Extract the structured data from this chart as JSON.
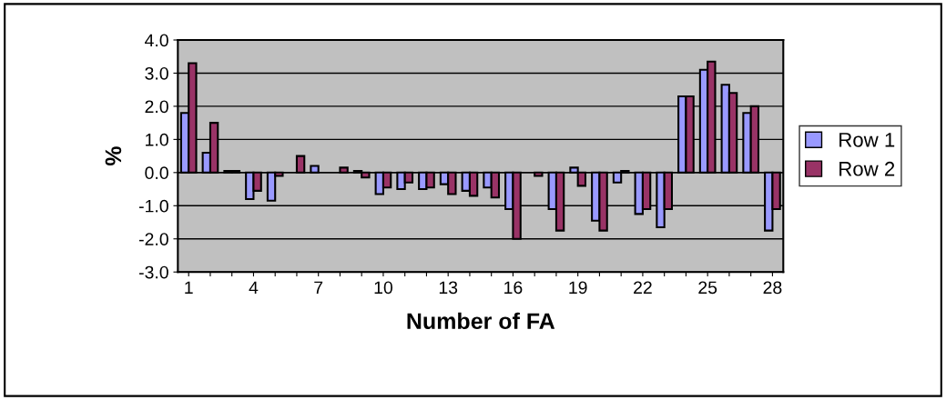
{
  "chart_data": {
    "type": "bar",
    "xlabel": "Number of FA",
    "ylabel": "%",
    "categories": [
      "1",
      null,
      null,
      "4",
      null,
      null,
      "7",
      null,
      null,
      "10",
      null,
      null,
      "13",
      null,
      null,
      "16",
      null,
      null,
      "19",
      null,
      null,
      "22",
      null,
      null,
      "25",
      null,
      null,
      "28"
    ],
    "series": [
      {
        "name": "Row 1",
        "color": "#9999ff",
        "values": [
          1.8,
          0.6,
          0.05,
          -0.8,
          -0.85,
          null,
          0.2,
          null,
          0.05,
          -0.65,
          -0.5,
          -0.5,
          -0.35,
          -0.55,
          -0.45,
          -1.1,
          null,
          -1.1,
          0.15,
          -1.45,
          -0.3,
          -1.25,
          -1.65,
          2.3,
          3.1,
          2.65,
          1.8,
          -1.75
        ]
      },
      {
        "name": "Row 2",
        "color": "#993366",
        "values": [
          3.3,
          1.5,
          0.05,
          -0.55,
          -0.1,
          0.5,
          null,
          0.15,
          -0.15,
          -0.45,
          -0.3,
          -0.45,
          -0.65,
          -0.7,
          -0.75,
          -2.0,
          -0.1,
          -1.75,
          -0.4,
          -1.75,
          0.05,
          -1.1,
          -1.1,
          2.3,
          3.35,
          2.4,
          2.0,
          -1.1
        ]
      }
    ],
    "ylim": [
      -3,
      4
    ],
    "yticks": [
      {
        "value": -3,
        "label": "-3.0"
      },
      {
        "value": -2,
        "label": "-2.0"
      },
      {
        "value": -1,
        "label": "-1.0"
      },
      {
        "value": 0,
        "label": "0.0"
      },
      {
        "value": 1,
        "label": "1.0"
      },
      {
        "value": 2,
        "label": "2.0"
      },
      {
        "value": 3,
        "label": "3.0"
      },
      {
        "value": 4,
        "label": "4.0"
      }
    ],
    "grid": "y",
    "legend": "right"
  }
}
